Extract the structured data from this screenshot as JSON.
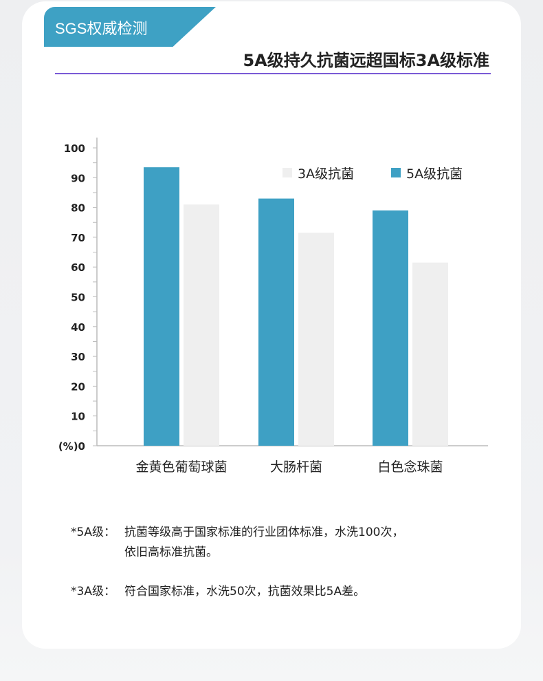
{
  "badge": "SGS权威检测",
  "headline": "5A级持久抗菌远超国标3A级标准",
  "colors": {
    "5A": "#3ea0c4",
    "3A": "#efefef",
    "accent_rule": "#7a5ad6"
  },
  "chart_data": {
    "type": "bar",
    "categories": [
      "金黄色葡萄球菌",
      "大肠杆菌",
      "白色念珠菌"
    ],
    "series": [
      {
        "name": "5A级抗菌",
        "values": [
          93.5,
          83,
          79
        ]
      },
      {
        "name": "3A级抗菌",
        "values": [
          81,
          71.5,
          61.5
        ]
      }
    ],
    "yticks": [
      "(%)0",
      "10",
      "20",
      "30",
      "40",
      "50",
      "60",
      "70",
      "80",
      "90",
      "100"
    ],
    "ylim": [
      0,
      100
    ],
    "legend_order": [
      "3A级抗菌",
      "5A级抗菌"
    ],
    "legend": "top-right",
    "grid": false
  },
  "notes": [
    {
      "key": "*5A级：",
      "lines": [
        "抗菌等级高于国家标准的行业团体标准，水洗100次，",
        "依旧高标准抗菌。"
      ]
    },
    {
      "key": "*3A级：",
      "lines": [
        "符合国家标准，水洗50次，抗菌效果比5A差。"
      ]
    }
  ]
}
